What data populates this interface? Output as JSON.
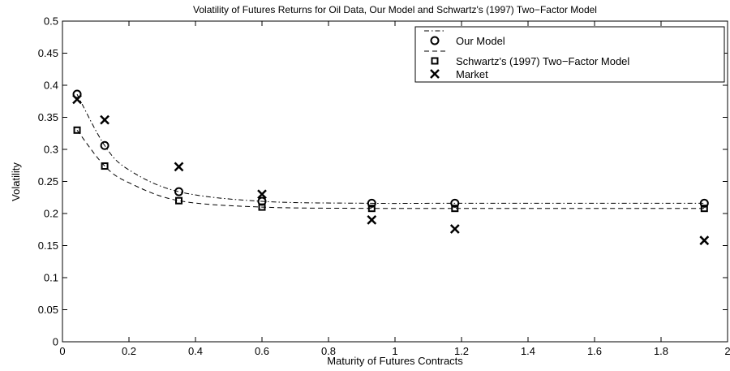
{
  "chart_data": {
    "type": "line",
    "title": "Volatility of Futures Returns for Oil Data, Our Model and Schwartz's (1997) Two−Factor Model",
    "xlabel": "Maturity of Futures Contracts",
    "ylabel": "Volatility",
    "xlim": [
      0,
      2
    ],
    "ylim": [
      0,
      0.5
    ],
    "xticks": [
      0,
      0.2,
      0.4,
      0.6,
      0.8,
      1,
      1.2,
      1.4,
      1.6,
      1.8,
      2
    ],
    "xtick_labels": [
      "0",
      "0.2",
      "0.4",
      "0.6",
      "0.8",
      "1",
      "1.2",
      "1.4",
      "1.6",
      "1.8",
      "2"
    ],
    "yticks": [
      0,
      0.05,
      0.1,
      0.15,
      0.2,
      0.25,
      0.3,
      0.35,
      0.4,
      0.45,
      0.5
    ],
    "ytick_labels": [
      "0",
      "0.05",
      "0.1",
      "0.15",
      "0.2",
      "0.25",
      "0.3",
      "0.35",
      "0.4",
      "0.45",
      "0.5"
    ],
    "grid": false,
    "legend_position": "top-right",
    "series": [
      {
        "name": "Our Model",
        "marker": "circle",
        "line_style": "dash-dot",
        "x": [
          0.044,
          0.127,
          0.35,
          0.6,
          0.93,
          1.18,
          1.93
        ],
        "y": [
          0.386,
          0.306,
          0.234,
          0.219,
          0.216,
          0.216,
          0.216
        ],
        "curve_x": [
          0.044,
          0.127,
          0.2,
          0.35,
          0.6,
          0.93,
          1.18,
          1.93
        ],
        "curve_y": [
          0.386,
          0.306,
          0.268,
          0.234,
          0.219,
          0.216,
          0.216,
          0.216
        ]
      },
      {
        "name": "Schwartz's (1997) Two−Factor Model",
        "marker": "square",
        "line_style": "dashed",
        "x": [
          0.044,
          0.127,
          0.35,
          0.6,
          0.93,
          1.18,
          1.93
        ],
        "y": [
          0.33,
          0.274,
          0.22,
          0.21,
          0.208,
          0.208,
          0.208
        ],
        "curve_x": [
          0.044,
          0.127,
          0.2,
          0.35,
          0.6,
          0.93,
          1.18,
          1.93
        ],
        "curve_y": [
          0.33,
          0.274,
          0.248,
          0.22,
          0.21,
          0.208,
          0.208,
          0.208
        ]
      },
      {
        "name": "Market",
        "marker": "x",
        "line_style": "none",
        "x": [
          0.044,
          0.127,
          0.35,
          0.6,
          0.93,
          1.18,
          1.93
        ],
        "y": [
          0.378,
          0.346,
          0.273,
          0.23,
          0.19,
          0.176,
          0.158
        ]
      }
    ]
  }
}
